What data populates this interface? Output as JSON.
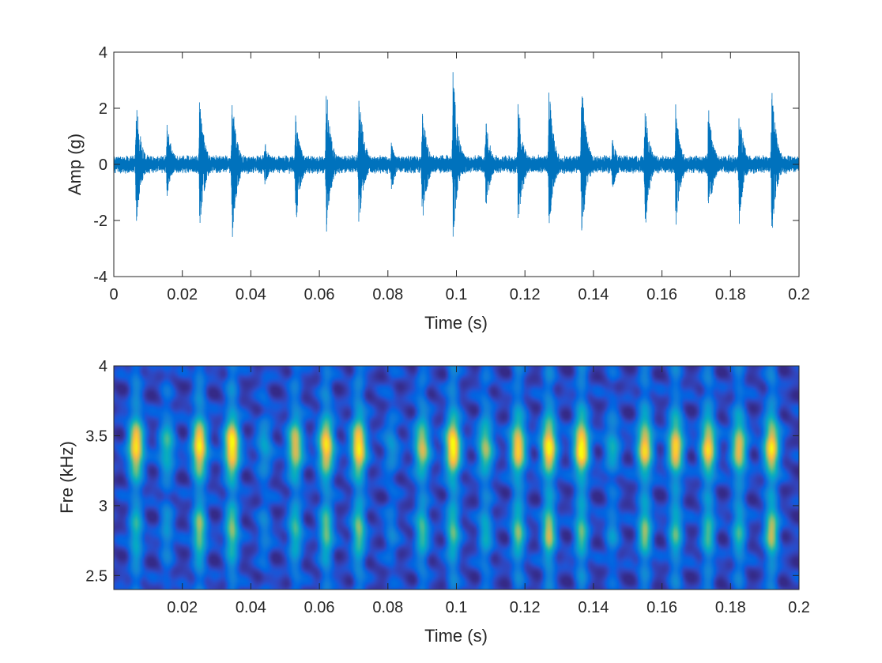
{
  "chart_data": [
    {
      "type": "line",
      "xlabel": "Time (s)",
      "ylabel": "Amp (g)",
      "xlim": [
        0,
        0.2
      ],
      "ylim": [
        -4,
        4
      ],
      "xticks": [
        0,
        0.02,
        0.04,
        0.06,
        0.08,
        0.1,
        0.12,
        0.14,
        0.16,
        0.18,
        0.2
      ],
      "xtick_labels": [
        "0",
        "0.02",
        "0.04",
        "0.06",
        "0.08",
        "0.1",
        "0.12",
        "0.14",
        "0.16",
        "0.18",
        "0.2"
      ],
      "yticks": [
        -4,
        -2,
        0,
        2,
        4
      ],
      "ytick_labels": [
        "-4",
        "-2",
        "0",
        "2",
        "4"
      ],
      "grid": false,
      "color": "#0072BD",
      "baseline_noise_amplitude": 0.35,
      "impulses": [
        {
          "t": 0.0065,
          "peak_pos": 2.65,
          "peak_neg": -2.3
        },
        {
          "t": 0.0155,
          "peak_pos": 1.7,
          "peak_neg": -1.2
        },
        {
          "t": 0.025,
          "peak_pos": 2.6,
          "peak_neg": -2.65
        },
        {
          "t": 0.0345,
          "peak_pos": 2.55,
          "peak_neg": -2.85
        },
        {
          "t": 0.044,
          "peak_pos": 0.9,
          "peak_neg": -0.9
        },
        {
          "t": 0.053,
          "peak_pos": 1.9,
          "peak_neg": -2.5
        },
        {
          "t": 0.062,
          "peak_pos": 3.05,
          "peak_neg": -2.65
        },
        {
          "t": 0.0715,
          "peak_pos": 3.0,
          "peak_neg": -2.5
        },
        {
          "t": 0.081,
          "peak_pos": 0.8,
          "peak_neg": -1.05
        },
        {
          "t": 0.09,
          "peak_pos": 2.25,
          "peak_neg": -2.4
        },
        {
          "t": 0.099,
          "peak_pos": 3.55,
          "peak_neg": -2.8
        },
        {
          "t": 0.1085,
          "peak_pos": 1.8,
          "peak_neg": -2.0
        },
        {
          "t": 0.118,
          "peak_pos": 2.5,
          "peak_neg": -2.45
        },
        {
          "t": 0.127,
          "peak_pos": 2.9,
          "peak_neg": -2.55
        },
        {
          "t": 0.1365,
          "peak_pos": 3.2,
          "peak_neg": -2.9
        },
        {
          "t": 0.1455,
          "peak_pos": 1.0,
          "peak_neg": -1.0
        },
        {
          "t": 0.155,
          "peak_pos": 2.3,
          "peak_neg": -2.6
        },
        {
          "t": 0.164,
          "peak_pos": 2.2,
          "peak_neg": -2.4
        },
        {
          "t": 0.1735,
          "peak_pos": 2.25,
          "peak_neg": -2.3
        },
        {
          "t": 0.1825,
          "peak_pos": 2.15,
          "peak_neg": -2.3
        },
        {
          "t": 0.192,
          "peak_pos": 3.1,
          "peak_neg": -2.85
        }
      ]
    },
    {
      "type": "heatmap",
      "xlabel": "Time (s)",
      "ylabel": "Fre (kHz)",
      "xlim": [
        0,
        0.2
      ],
      "ylim": [
        2.4,
        4.0
      ],
      "xticks": [
        0.02,
        0.04,
        0.06,
        0.08,
        0.1,
        0.12,
        0.14,
        0.16,
        0.18,
        0.2
      ],
      "xtick_labels": [
        "0.02",
        "0.04",
        "0.06",
        "0.08",
        "0.1",
        "0.12",
        "0.14",
        "0.16",
        "0.18",
        "0.2"
      ],
      "yticks": [
        2.5,
        3.0,
        3.5,
        4.0
      ],
      "ytick_labels": [
        "2.5",
        "3",
        "3.5",
        "4"
      ],
      "colormap": "parula",
      "grid": false,
      "band_centers_khz": [
        3.42,
        2.82
      ],
      "band_intensity": [
        {
          "t": 0.0065,
          "high": 0.92,
          "low": 0.35
        },
        {
          "t": 0.0155,
          "high": 0.45,
          "low": 0.25
        },
        {
          "t": 0.025,
          "high": 0.95,
          "low": 0.62
        },
        {
          "t": 0.0345,
          "high": 1.0,
          "low": 0.55
        },
        {
          "t": 0.044,
          "high": 0.3,
          "low": 0.2
        },
        {
          "t": 0.053,
          "high": 0.75,
          "low": 0.45
        },
        {
          "t": 0.062,
          "high": 0.9,
          "low": 0.55
        },
        {
          "t": 0.0715,
          "high": 0.95,
          "low": 0.55
        },
        {
          "t": 0.081,
          "high": 0.25,
          "low": 0.2
        },
        {
          "t": 0.09,
          "high": 0.7,
          "low": 0.5
        },
        {
          "t": 0.099,
          "high": 1.0,
          "low": 0.45
        },
        {
          "t": 0.1085,
          "high": 0.6,
          "low": 0.35
        },
        {
          "t": 0.118,
          "high": 0.85,
          "low": 0.55
        },
        {
          "t": 0.127,
          "high": 0.95,
          "low": 0.72
        },
        {
          "t": 0.1365,
          "high": 1.0,
          "low": 0.45
        },
        {
          "t": 0.1455,
          "high": 0.35,
          "low": 0.25
        },
        {
          "t": 0.155,
          "high": 0.85,
          "low": 0.6
        },
        {
          "t": 0.164,
          "high": 0.85,
          "low": 0.45
        },
        {
          "t": 0.1735,
          "high": 0.85,
          "low": 0.45
        },
        {
          "t": 0.1825,
          "high": 0.75,
          "low": 0.4
        },
        {
          "t": 0.192,
          "high": 0.9,
          "low": 0.72
        }
      ]
    }
  ]
}
